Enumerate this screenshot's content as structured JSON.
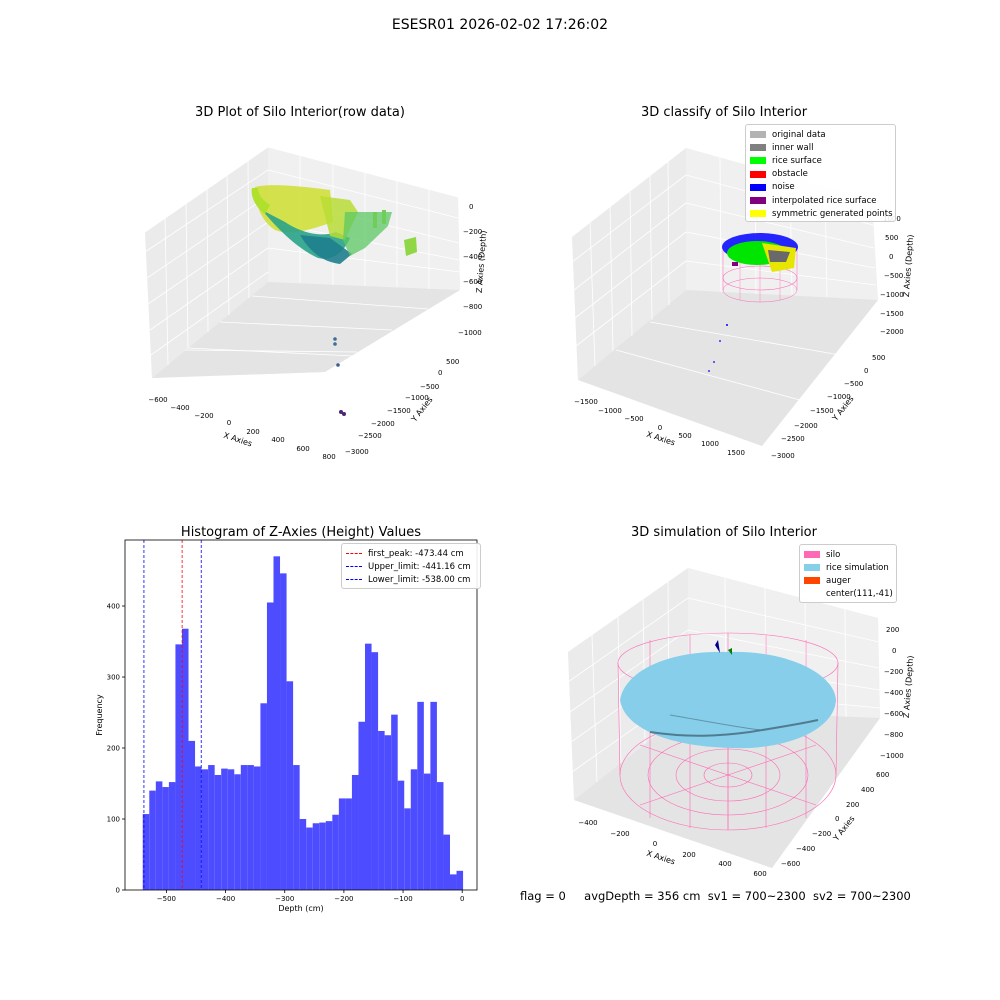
{
  "suptitle": "ESESR01 2026-02-02 17:26:02",
  "status": {
    "flag": "flag = 0",
    "avg": "avgDepth = 356 cm",
    "sv1": "sv1 = 700~2300",
    "sv2": "sv2 = 700~2300"
  },
  "chart_data": [
    {
      "type": "scatter",
      "title": "3D Plot of Silo Interior(row data)",
      "xlabel": "X Axies",
      "ylabel": "Y Axies",
      "zlabel": "Z Axies (Depth)",
      "x_ticks": [
        "−600",
        "−400",
        "−200",
        "0",
        "200",
        "400",
        "600",
        "800"
      ],
      "y_ticks": [
        "500",
        "0",
        "−500",
        "−1000",
        "−1500",
        "−2000",
        "−2500",
        "−3000"
      ],
      "z_ticks": [
        "0",
        "−200",
        "−400",
        "−600",
        "−800",
        "−1000"
      ],
      "colormap": "viridis"
    },
    {
      "type": "scatter",
      "title": "3D classify of Silo Interior",
      "xlabel": "X Axies",
      "ylabel": "Y Axies",
      "zlabel": "Z Axies (Depth)",
      "x_ticks": [
        "−1500",
        "−1000",
        "−500",
        "0",
        "500",
        "1000",
        "1500"
      ],
      "y_ticks": [
        "500",
        "0",
        "−500",
        "−1000",
        "−1500",
        "−2000",
        "−2500",
        "−3000"
      ],
      "z_ticks": [
        "1000",
        "500",
        "0",
        "−500",
        "−1000",
        "−1500",
        "−2000"
      ],
      "legend": [
        {
          "label": "original data",
          "color": "#b3b3b3"
        },
        {
          "label": "inner wall",
          "color": "#808080"
        },
        {
          "label": "rice surface",
          "color": "#00ff00"
        },
        {
          "label": "obstacle",
          "color": "#ff0000"
        },
        {
          "label": "noise",
          "color": "#0000ff"
        },
        {
          "label": "interpolated rice surface",
          "color": "#800080"
        },
        {
          "label": "symmetric generated points",
          "color": "#ffff00"
        }
      ]
    },
    {
      "type": "bar",
      "title": "Histogram of Z-Axies (Height) Values",
      "xlabel": "Depth (cm)",
      "ylabel": "Frequency",
      "xlim": [
        -570,
        25
      ],
      "ylim": [
        0,
        493
      ],
      "x_ticks": [
        -500,
        -400,
        -300,
        -200,
        -100,
        0
      ],
      "x_tick_labels": [
        "−500",
        "−400",
        "−300",
        "−200",
        "−100",
        "0"
      ],
      "y_ticks": [
        0,
        100,
        200,
        300,
        400
      ],
      "bin_start": -540,
      "bin_width": 11.05,
      "values": [
        107,
        140,
        153,
        145,
        152,
        346,
        368,
        210,
        174,
        170,
        176,
        162,
        171,
        170,
        163,
        176,
        176,
        174,
        263,
        405,
        470,
        446,
        294,
        176,
        100,
        88,
        94,
        95,
        97,
        106,
        129,
        129,
        162,
        237,
        347,
        335,
        224,
        218,
        247,
        154,
        115,
        170,
        265,
        164,
        265,
        152,
        78,
        22,
        27
      ],
      "bar_color": "#4d4dff",
      "lines": [
        {
          "x": -473.44,
          "color": "red",
          "label": "first_peak: -473.44 cm"
        },
        {
          "x": -441.16,
          "color": "blue",
          "label": "Upper_limit: -441.16 cm"
        },
        {
          "x": -538.0,
          "color": "blue",
          "label": "Lower_limit: -538.00 cm"
        }
      ],
      "legend_position": "top-right"
    },
    {
      "type": "scatter",
      "title": "3D simulation of Silo Interior",
      "xlabel": "X Axies",
      "ylabel": "Y Axies",
      "zlabel": "Z Axies (Depth)",
      "x_ticks": [
        "−400",
        "−200",
        "0",
        "200",
        "400",
        "600"
      ],
      "y_ticks": [
        "600",
        "400",
        "200",
        "0",
        "−200",
        "−400",
        "−600"
      ],
      "z_ticks": [
        "200",
        "0",
        "−200",
        "−400",
        "−600",
        "−800",
        "−1000"
      ],
      "legend": [
        {
          "label": "silo",
          "color": "#ff69b4"
        },
        {
          "label": "rice simulation",
          "color": "#87ceeb"
        },
        {
          "label": "auger",
          "color": "#ff4500"
        },
        {
          "label": "center(111,-41)",
          "color": ""
        }
      ]
    }
  ]
}
